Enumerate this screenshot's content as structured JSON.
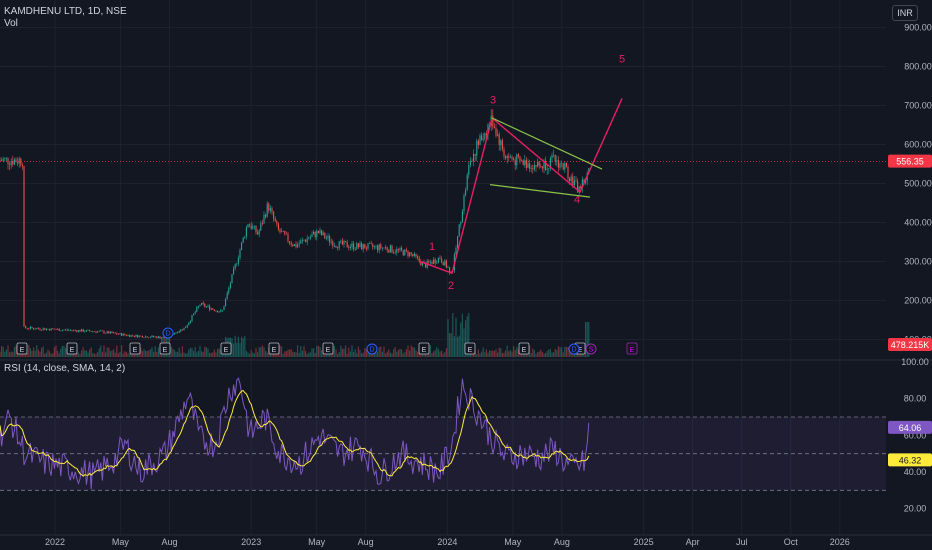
{
  "symbol_title": "KAMDHENU LTD, 1D, NSE",
  "volume_label": "Vol",
  "currency_button": "INR",
  "rsi_label": "RSI (14, close, SMA, 14, 2)",
  "price_axis": {
    "ticks": [
      "100.00",
      "200.00",
      "300.00",
      "400.00",
      "500.00",
      "600.00",
      "700.00",
      "800.00",
      "900.00"
    ],
    "range": [
      55,
      950
    ]
  },
  "rsi_axis": {
    "ticks": [
      "20.00",
      "40.00",
      "60.00",
      "80.00",
      "100.00"
    ],
    "range": [
      10,
      100
    ],
    "upper_band": 70,
    "middle": 50,
    "lower_band": 30
  },
  "time_axis": [
    "2022",
    "May",
    "Aug",
    "2023",
    "May",
    "Aug",
    "2024",
    "May",
    "Aug",
    "2025",
    "Apr",
    "Jul",
    "Oct",
    "2026"
  ],
  "price_badges": {
    "last_price": {
      "text": "556.35",
      "color": "#f23645"
    },
    "volume": {
      "text": "478.215K",
      "color": "#f23645"
    },
    "rsi_value": {
      "text": "64.06",
      "color": "#7e57c2"
    },
    "rsi_ma": {
      "text": "46.32",
      "color": "#ffeb3b"
    }
  },
  "wave_labels": [
    "1",
    "2",
    "3",
    "4",
    "5"
  ],
  "event_markers": {
    "earnings": "E",
    "dividend": "D",
    "split": "S"
  },
  "colors": {
    "up": "#26a69a",
    "down": "#ef5350",
    "wave": "#e91e63",
    "channel": "#8bc34a",
    "rsi_line": "#7e57c2",
    "rsi_ma": "#ffeb3b",
    "background": "#131722"
  },
  "chart_data": {
    "type": "candlestick",
    "series": [
      {
        "name": "price",
        "x": [
          "2022-01",
          "2022-03",
          "2022-05",
          "2022-07",
          "2022-09",
          "2022-10",
          "2022-11",
          "2022-12",
          "2023-01",
          "2023-02",
          "2023-04",
          "2023-06",
          "2023-08",
          "2023-10",
          "2023-12",
          "2024-01",
          "2024-02",
          "2024-03",
          "2024-04",
          "2024-05",
          "2024-06",
          "2024-07",
          "2024-08"
        ],
        "values": [
          130,
          120,
          128,
          112,
          135,
          195,
          250,
          410,
          440,
          330,
          345,
          330,
          325,
          310,
          270,
          470,
          660,
          560,
          540,
          530,
          560,
          490,
          556
        ]
      },
      {
        "name": "RSI",
        "x": [
          "2022-01",
          "2022-03",
          "2022-05",
          "2022-07",
          "2022-09",
          "2022-11",
          "2023-01",
          "2023-03",
          "2023-05",
          "2023-07",
          "2023-09",
          "2023-11",
          "2024-01",
          "2024-03",
          "2024-05",
          "2024-07",
          "2024-08"
        ],
        "values": [
          65,
          45,
          40,
          38,
          55,
          90,
          70,
          45,
          50,
          45,
          40,
          48,
          88,
          45,
          50,
          40,
          64
        ]
      }
    ]
  }
}
